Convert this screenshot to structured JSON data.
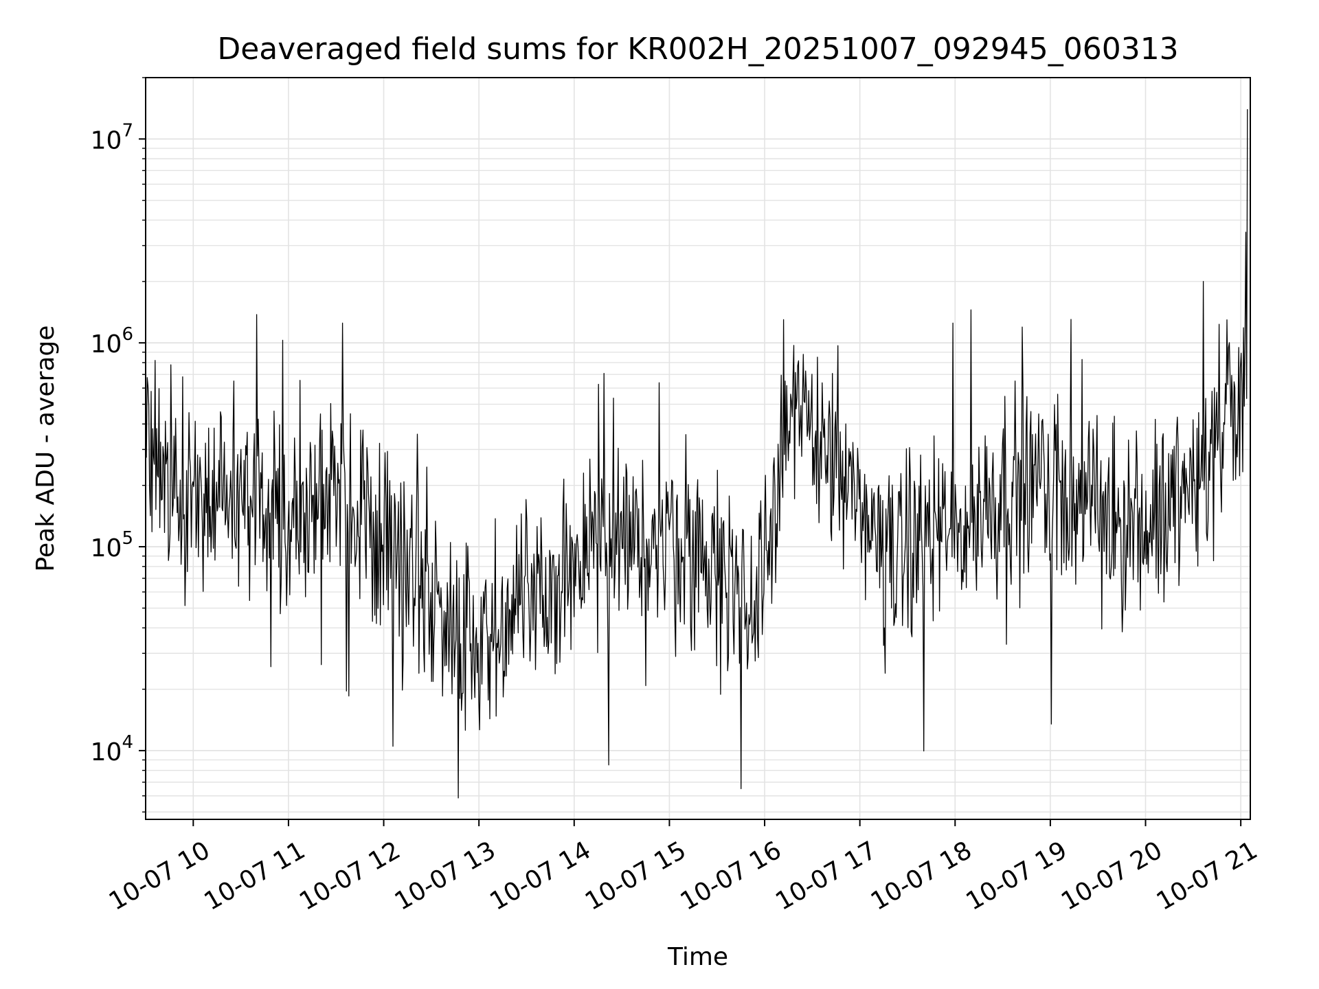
{
  "chart_data": {
    "type": "line",
    "title": "Deaveraged field sums for KR002H_20251007_092945_060313",
    "xlabel": "Time",
    "ylabel": "Peak ADU - average",
    "yscale": "log",
    "ylim": [
      4600,
      20000000
    ],
    "xlim_hours": [
      9.5,
      21.1
    ],
    "x_ticks": [
      {
        "hour": 10,
        "label": "10-07 10"
      },
      {
        "hour": 11,
        "label": "10-07 11"
      },
      {
        "hour": 12,
        "label": "10-07 12"
      },
      {
        "hour": 13,
        "label": "10-07 13"
      },
      {
        "hour": 14,
        "label": "10-07 14"
      },
      {
        "hour": 15,
        "label": "10-07 15"
      },
      {
        "hour": 16,
        "label": "10-07 16"
      },
      {
        "hour": 17,
        "label": "10-07 17"
      },
      {
        "hour": 18,
        "label": "10-07 18"
      },
      {
        "hour": 19,
        "label": "10-07 19"
      },
      {
        "hour": 20,
        "label": "10-07 20"
      },
      {
        "hour": 21,
        "label": "10-07 21"
      }
    ],
    "y_ticks": [
      {
        "exp": 4,
        "base": "10",
        "sup": "4"
      },
      {
        "exp": 5,
        "base": "10",
        "sup": "5"
      },
      {
        "exp": 6,
        "base": "10",
        "sup": "6"
      },
      {
        "exp": 7,
        "base": "10",
        "sup": "7"
      }
    ],
    "grid": true,
    "series": [
      {
        "name": "deaveraged field sum",
        "color": "#000000",
        "baseline_hours": [
          9.5,
          10.0,
          10.5,
          11.0,
          11.5,
          12.0,
          12.5,
          13.0,
          13.5,
          14.0,
          14.5,
          15.0,
          15.5,
          15.9,
          16.2,
          16.5,
          16.8,
          17.0,
          17.5,
          18.0,
          18.5,
          19.0,
          19.5,
          20.0,
          20.5,
          20.8,
          21.1
        ],
        "baseline_values": [
          250000,
          200000,
          170000,
          150000,
          180000,
          110000,
          60000,
          35000,
          50000,
          75000,
          100000,
          110000,
          80000,
          60000,
          350000,
          450000,
          200000,
          130000,
          100000,
          120000,
          200000,
          220000,
          150000,
          130000,
          200000,
          400000,
          450000
        ],
        "sample_count": 1400,
        "noise_decades": 0.55,
        "noted_extremes": [
          {
            "hour": 21.07,
            "value": 14000000
          },
          {
            "hour": 20.61,
            "value": 2000000
          },
          {
            "hour": 15.75,
            "value": 6500
          },
          {
            "hour": 14.36,
            "value": 8500
          },
          {
            "hour": 12.1,
            "value": 10500
          },
          {
            "hour": 19.01,
            "value": 13500
          },
          {
            "hour": 16.2,
            "value": 1300000
          },
          {
            "hour": 11.57,
            "value": 1250000
          },
          {
            "hour": 17.98,
            "value": 1250000
          }
        ]
      }
    ]
  }
}
